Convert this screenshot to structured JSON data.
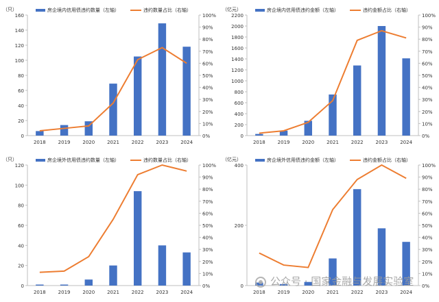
{
  "colors": {
    "bar": "#4472C4",
    "line": "#ED7D31",
    "axis": "#BFBFBF",
    "text": "#333333"
  },
  "watermark": {
    "icon": "wechat-icon",
    "text": "公众号 · 国家金融与发展实验室"
  },
  "chart_data": [
    {
      "type": "bar",
      "categories": [
        "2018",
        "2019",
        "2020",
        "2021",
        "2022",
        "2023",
        "2024"
      ],
      "series": [
        {
          "name": "房企境内信用债违约数量（左轴）",
          "kind": "bar",
          "axis": "left",
          "values": [
            6,
            14,
            19,
            69,
            105,
            149,
            118
          ]
        },
        {
          "name": "违约数量占比（右轴）",
          "kind": "line",
          "axis": "right",
          "values": [
            4,
            6,
            8,
            27,
            63,
            73,
            60
          ]
        }
      ],
      "left_unit": "（只）",
      "left_ticks": [
        "0",
        "20",
        "40",
        "60",
        "80",
        "100",
        "120",
        "140",
        "160"
      ],
      "left_range": [
        0,
        160
      ],
      "right_ticks": [
        "0%",
        "10%",
        "20%",
        "30%",
        "40%",
        "50%",
        "60%",
        "70%",
        "80%",
        "90%",
        "100%"
      ],
      "right_range": [
        0,
        100
      ],
      "legend": "top"
    },
    {
      "type": "bar",
      "categories": [
        "2018",
        "2019",
        "2020",
        "2021",
        "2022",
        "2023",
        "2024"
      ],
      "series": [
        {
          "name": "房企境内信用债违约金额（左轴）",
          "kind": "bar",
          "axis": "left",
          "values": [
            30,
            90,
            270,
            750,
            1280,
            2000,
            1410
          ]
        },
        {
          "name": "违约金额占比（右轴）",
          "kind": "line",
          "axis": "right",
          "values": [
            2,
            4,
            11,
            29,
            79,
            87,
            81
          ]
        }
      ],
      "left_unit": "（亿元）",
      "left_ticks": [
        "0",
        "200",
        "400",
        "600",
        "800",
        "1000",
        "1200",
        "1400",
        "1600",
        "1800",
        "2000",
        "2200"
      ],
      "left_range": [
        0,
        2200
      ],
      "right_ticks": [
        "0%",
        "10%",
        "20%",
        "30%",
        "40%",
        "50%",
        "60%",
        "70%",
        "80%",
        "90%",
        "100%"
      ],
      "right_range": [
        0,
        100
      ],
      "legend": "top"
    },
    {
      "type": "bar",
      "categories": [
        "2018",
        "2019",
        "2020",
        "2021",
        "2022",
        "2023",
        "2024"
      ],
      "series": [
        {
          "name": "房企境外信用债违约数量（左轴）",
          "kind": "bar",
          "axis": "left",
          "values": [
            1,
            1,
            6,
            20,
            94,
            40,
            33
          ]
        },
        {
          "name": "违约数量占比（右轴）",
          "kind": "line",
          "axis": "right",
          "values": [
            11,
            12,
            24,
            55,
            92,
            100,
            95
          ]
        }
      ],
      "left_unit": "（只）",
      "left_ticks": [
        "0",
        "20",
        "40",
        "60",
        "80",
        "100",
        "120"
      ],
      "left_range": [
        0,
        120
      ],
      "right_ticks": [
        "0%",
        "10%",
        "20%",
        "30%",
        "40%",
        "50%",
        "60%",
        "70%",
        "80%",
        "90%",
        "100%"
      ],
      "right_range": [
        0,
        100
      ],
      "legend": "top"
    },
    {
      "type": "bar",
      "categories": [
        "2018",
        "2019",
        "2020",
        "2021",
        "2022",
        "2023",
        "2024"
      ],
      "series": [
        {
          "name": "房企境外信用债违约金额（左轴）",
          "kind": "bar",
          "axis": "left",
          "values": [
            10,
            5,
            12,
            90,
            320,
            190,
            145
          ]
        },
        {
          "name": "违约金额占比（右轴）",
          "kind": "line",
          "axis": "right",
          "values": [
            27,
            17,
            15,
            63,
            88,
            100,
            89
          ]
        }
      ],
      "left_unit": "（亿元）",
      "left_ticks": [
        "0",
        "200",
        "400"
      ],
      "left_range": [
        0,
        400
      ],
      "right_ticks": [
        "0%",
        "10%",
        "20%",
        "30%",
        "40%",
        "50%",
        "60%",
        "70%",
        "80%",
        "90%",
        "100%"
      ],
      "right_range": [
        0,
        100
      ],
      "legend": "top"
    }
  ]
}
